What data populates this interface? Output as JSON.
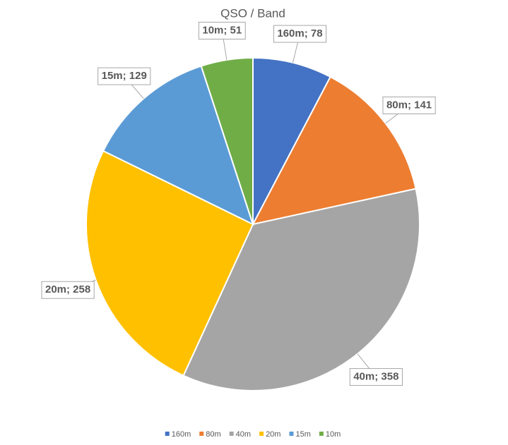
{
  "chart_data": {
    "type": "pie",
    "title": "QSO / Band",
    "categories": [
      "160m",
      "80m",
      "40m",
      "20m",
      "15m",
      "10m"
    ],
    "values": [
      78,
      141,
      358,
      258,
      129,
      51
    ],
    "value_labels": [
      "160m; 78",
      "80m; 141",
      "40m; 358",
      "20m; 258",
      "15m; 129",
      "10m; 51"
    ],
    "colors": [
      "#4472c4",
      "#ed7d31",
      "#a5a5a5",
      "#ffc000",
      "#5b9bd5",
      "#70ad47"
    ],
    "legend": "bottom"
  }
}
